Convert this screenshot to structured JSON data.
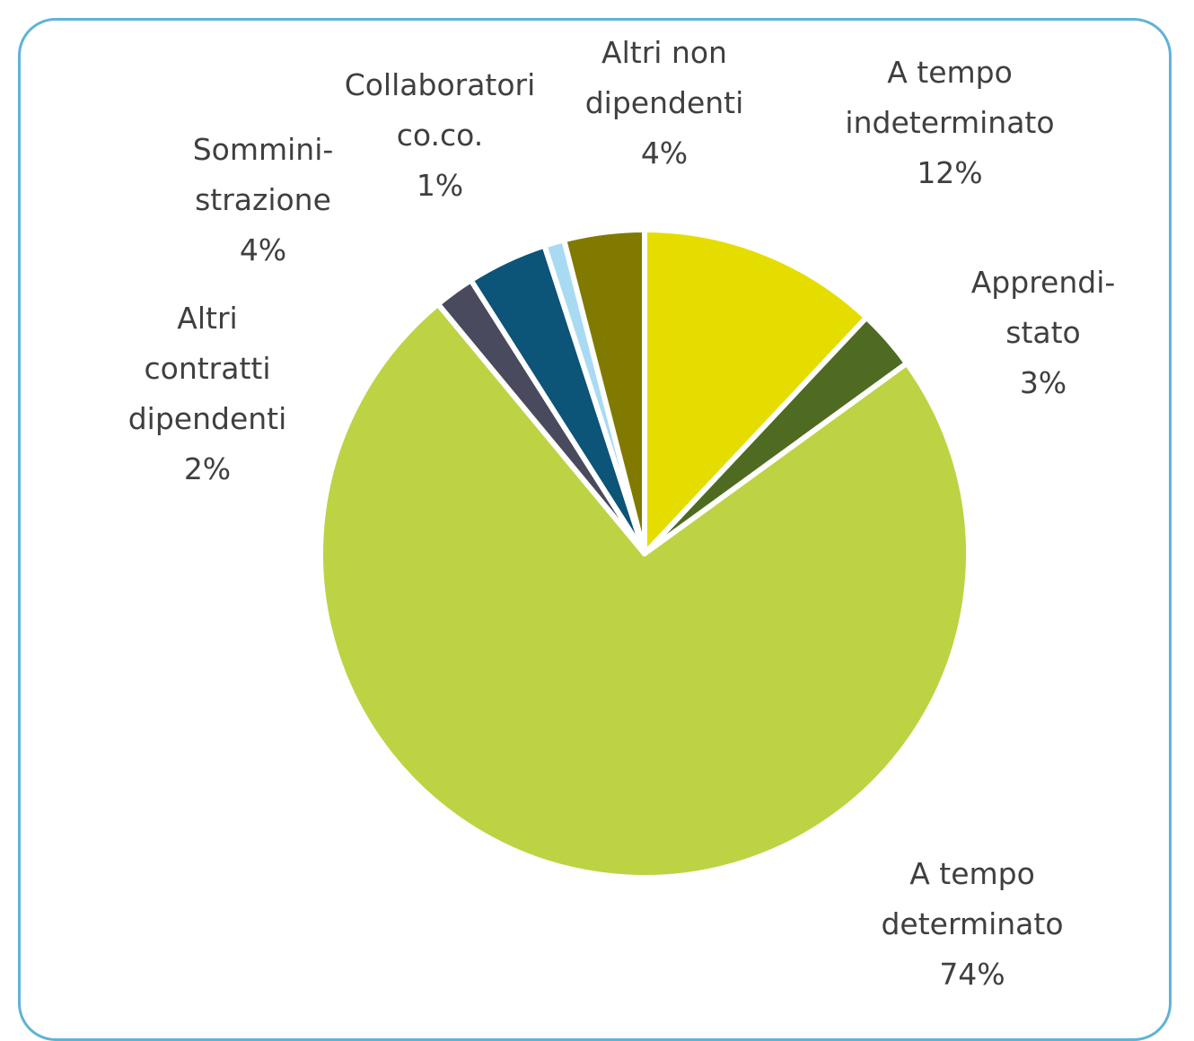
{
  "chart_data": {
    "type": "pie",
    "start_angle_deg": 0,
    "direction": "clockwise",
    "slices": [
      {
        "label_lines": [
          "A tempo",
          "indeterminato",
          "12%"
        ],
        "value": 12,
        "color": "#e6dd00"
      },
      {
        "label_lines": [
          "Apprendi-",
          "stato",
          "3%"
        ],
        "value": 3,
        "color": "#4e6b21"
      },
      {
        "label_lines": [
          "A tempo",
          "determinato",
          "74%"
        ],
        "value": 74,
        "color": "#bdd344"
      },
      {
        "label_lines": [
          "Altri",
          "contratti",
          "dipendenti",
          "2%"
        ],
        "value": 2,
        "color": "#4a4a5e"
      },
      {
        "label_lines": [
          "Sommini-",
          "strazione",
          "4%"
        ],
        "value": 4,
        "color": "#0c5478"
      },
      {
        "label_lines": [
          "Collaboratori",
          "co.co.",
          "1%"
        ],
        "value": 1,
        "color": "#a8dbf2"
      },
      {
        "label_lines": [
          "Altri non",
          "dipendenti",
          "4%"
        ],
        "value": 4,
        "color": "#807a00"
      }
    ]
  }
}
